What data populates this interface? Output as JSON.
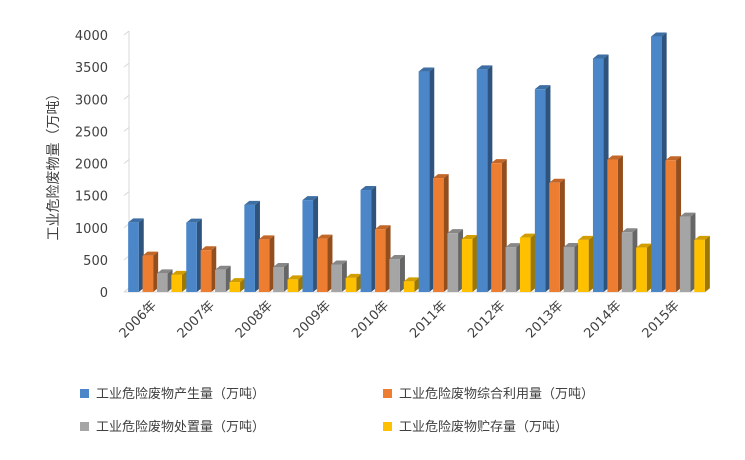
{
  "chart_data": {
    "type": "bar",
    "style": "3d-clustered-column",
    "ylabel": "工业危险废物量（万吨）",
    "ylim": [
      0,
      4000
    ],
    "yticks": [
      0,
      500,
      1000,
      1500,
      2000,
      2500,
      3000,
      3500,
      4000
    ],
    "grid": false,
    "legend_position": "bottom",
    "categories": [
      "2006年",
      "2007年",
      "2008年",
      "2009年",
      "2010年",
      "2011年",
      "2012年",
      "2013年",
      "2014年",
      "2015年"
    ],
    "series": [
      {
        "name": "工业危险废物产生量（万吨）",
        "color": "#4a86c8",
        "values": [
          1084,
          1079,
          1357,
          1430,
          1587,
          3431,
          3465,
          3157,
          3634,
          3976
        ]
      },
      {
        "name": "工业危险废物综合利用量（万吨）",
        "color": "#ed7d31",
        "values": [
          566,
          650,
          819,
          831,
          977,
          1773,
          2005,
          1700,
          2062,
          2050
        ]
      },
      {
        "name": "工业危险废物处置量（万吨）",
        "color": "#a5a5a5",
        "values": [
          290,
          346,
          389,
          428,
          513,
          916,
          699,
          701,
          929,
          1174
        ]
      },
      {
        "name": "工业危险废物贮存量（万吨）",
        "color": "#ffc000",
        "values": [
          267,
          154,
          196,
          219,
          166,
          824,
          847,
          811,
          691,
          811
        ]
      }
    ]
  }
}
